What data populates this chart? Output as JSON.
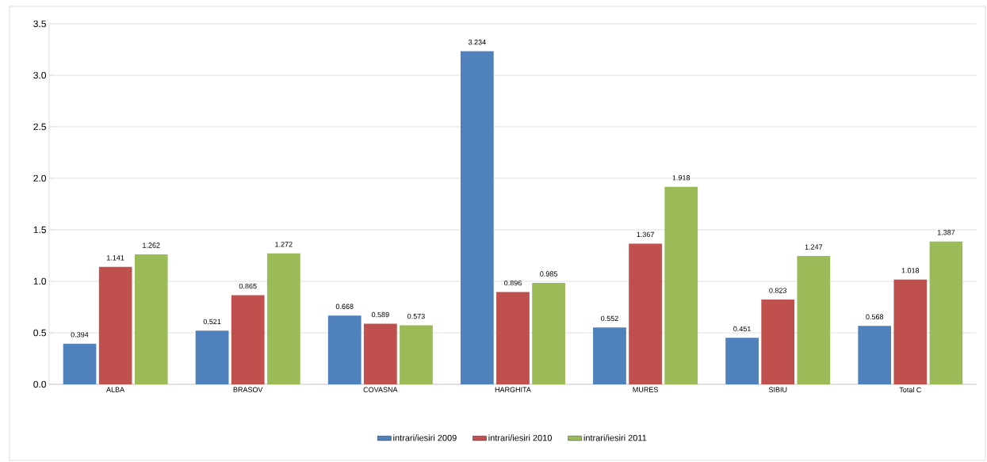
{
  "chart_data": {
    "type": "bar",
    "categories": [
      "ALBA",
      "BRASOV",
      "COVASNA",
      "HARGHITA",
      "MURES",
      "SIBIU",
      "Total C"
    ],
    "series": [
      {
        "name": "intrari/iesiri 2009",
        "color": "#4f81bd",
        "values": [
          0.394,
          0.521,
          0.668,
          3.234,
          0.552,
          0.451,
          0.568
        ]
      },
      {
        "name": "intrari/iesiri 2010",
        "color": "#c0504d",
        "values": [
          1.141,
          0.865,
          0.589,
          0.896,
          1.367,
          0.823,
          1.018
        ]
      },
      {
        "name": "intrari/iesiri 2011",
        "color": "#9bbb59",
        "values": [
          1.262,
          1.272,
          0.573,
          0.985,
          1.918,
          1.247,
          1.387
        ]
      }
    ],
    "ylim": [
      0,
      3.5
    ],
    "yticks": [
      {
        "value": 0,
        "label": "0.0"
      },
      0.5,
      {
        "value": 1,
        "label": "1.0"
      },
      1.5,
      {
        "value": 2,
        "label": "2.0"
      },
      2.5,
      {
        "value": 3,
        "label": "3.0"
      },
      3.5
    ],
    "grid": "y",
    "legend": "bottom",
    "data_labels": true
  }
}
